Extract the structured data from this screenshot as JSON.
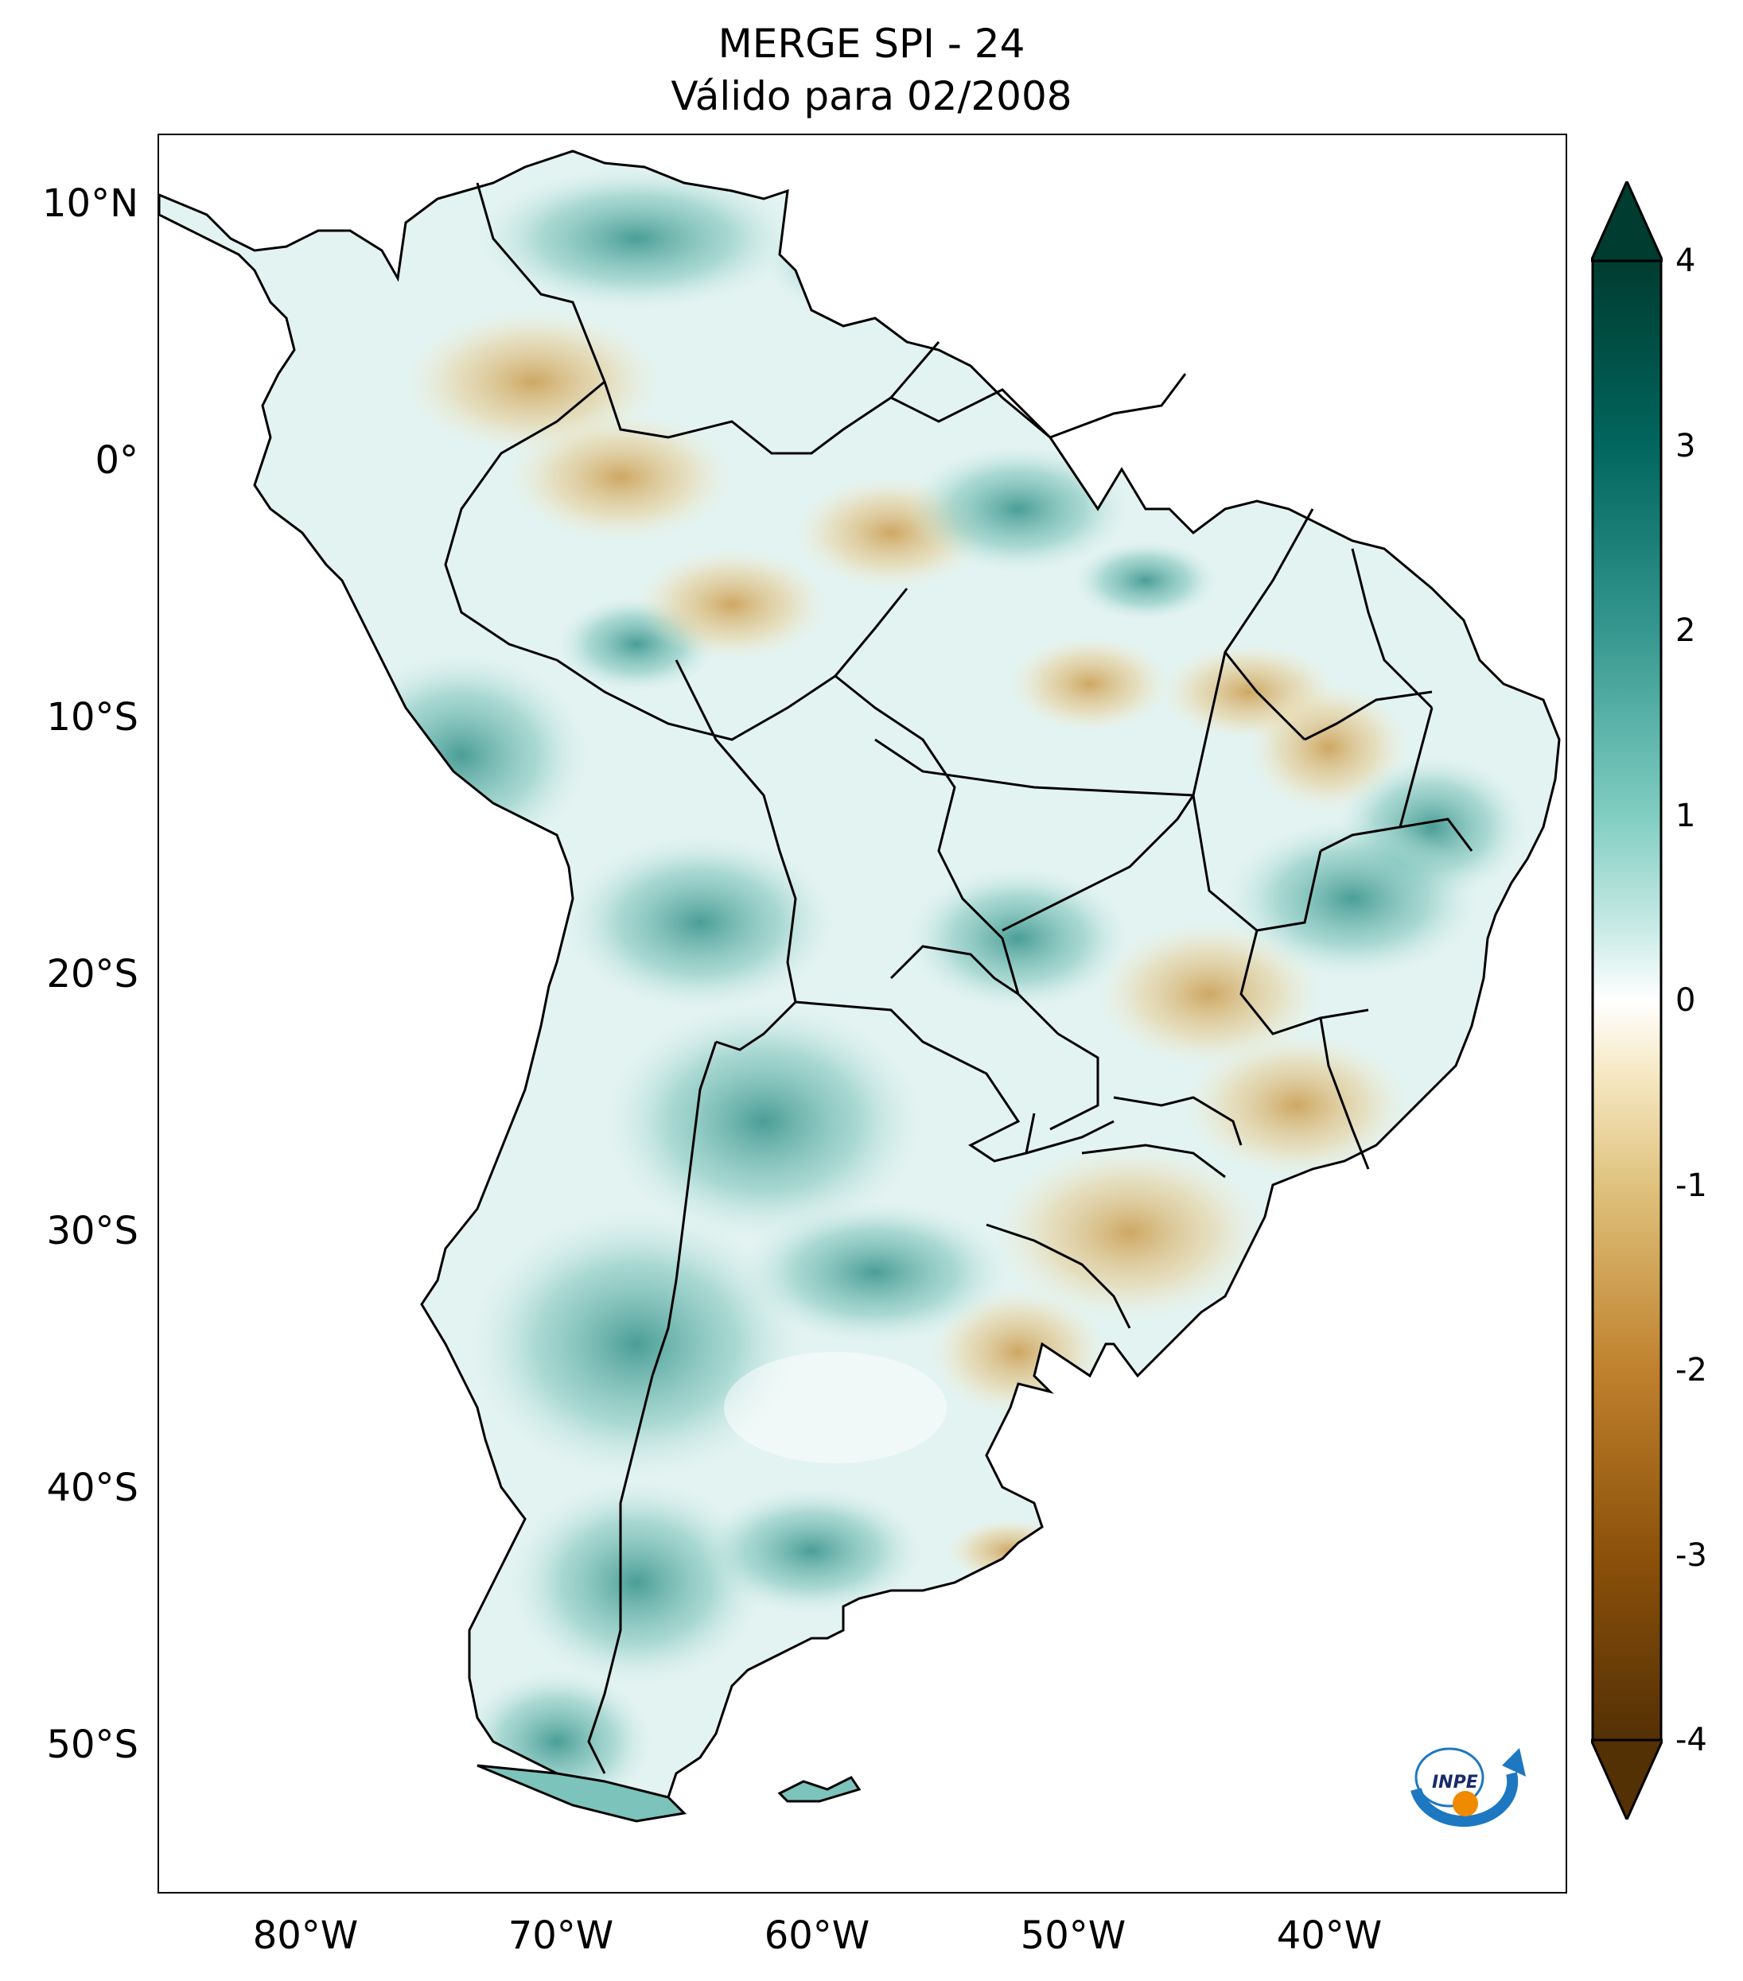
{
  "title": {
    "line1": "MERGE   SPI - 24",
    "line2": "Válido para 02/2008"
  },
  "axes": {
    "lat_ticks": [
      "10°N",
      "0°",
      "10°S",
      "20°S",
      "30°S",
      "40°S",
      "50°S"
    ],
    "lon_ticks": [
      "80°W",
      "70°W",
      "60°W",
      "50°W",
      "40°W"
    ]
  },
  "colorbar": {
    "min": -4,
    "max": 4,
    "ticks": [
      "4",
      "3",
      "2",
      "1",
      "0",
      "-1",
      "-2",
      "-3",
      "-4"
    ],
    "colors": {
      "high": "#003c30",
      "mid_high": "#35978f",
      "low_positive": "#c7eae5",
      "zero": "#ffffff",
      "low_negative": "#f6e8c3",
      "mid_low": "#bf812d",
      "low": "#543005"
    }
  },
  "logo": {
    "text": "INPE"
  }
}
